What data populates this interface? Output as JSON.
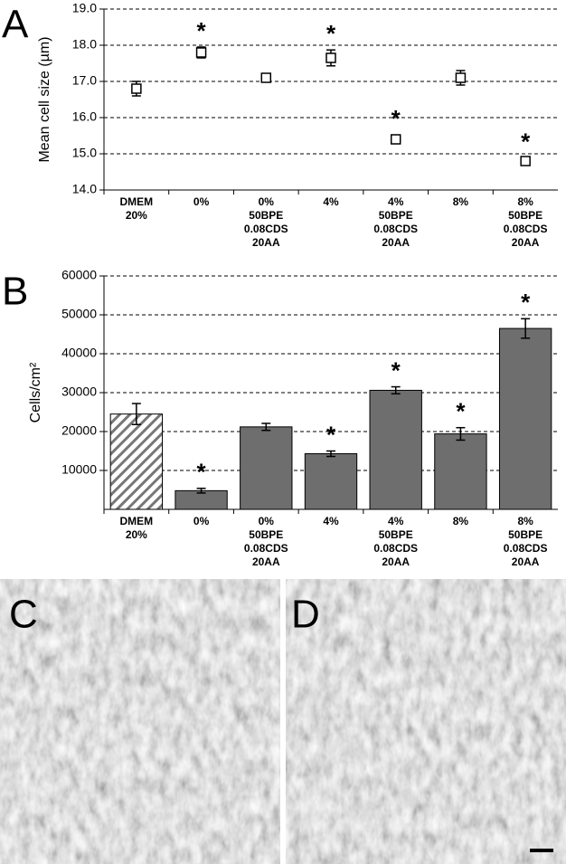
{
  "chart_data": [
    {
      "type": "point",
      "panel_label": "A",
      "ylabel": "Mean cell size (µm)",
      "categories": [
        "DMEM\n20%",
        "0%",
        "0%\n50BPE\n0.08CDS\n20AA",
        "4%",
        "4%\n50BPE\n0.08CDS\n20AA",
        "8%",
        "8%\n50BPE\n0.08CDS\n20AA"
      ],
      "values": [
        16.8,
        17.8,
        17.1,
        17.65,
        15.4,
        17.1,
        14.8
      ],
      "errors": [
        0.2,
        0.15,
        0.1,
        0.22,
        0.12,
        0.2,
        0.08
      ],
      "annotations": [
        {
          "index": 1,
          "text": "*"
        },
        {
          "index": 3,
          "text": "*"
        },
        {
          "index": 4,
          "text": "*"
        },
        {
          "index": 6,
          "text": "*"
        }
      ],
      "ylim": [
        14,
        19
      ],
      "yticks": [
        {
          "value": 14,
          "label": "14.0"
        },
        {
          "value": 15,
          "label": "15.0"
        },
        {
          "value": 16,
          "label": "16.0"
        },
        {
          "value": 17,
          "label": "17.0"
        },
        {
          "value": 18,
          "label": "18.0"
        },
        {
          "value": 19,
          "label": "19.0"
        }
      ],
      "grid": true,
      "color": "#ffffff"
    },
    {
      "type": "bar",
      "panel_label": "B",
      "ylabel": "Cells/cm²",
      "categories": [
        "DMEM\n20%",
        "0%",
        "0%\n50BPE\n0.08CDS\n20AA",
        "4%",
        "4%\n50BPE\n0.08CDS\n20AA",
        "8%",
        "8%\n50BPE\n0.08CDS\n20AA"
      ],
      "values": [
        24500,
        4800,
        21200,
        14300,
        30600,
        19400,
        46500
      ],
      "errors": [
        2700,
        600,
        900,
        700,
        900,
        1600,
        2500
      ],
      "hatched": [
        true,
        false,
        false,
        false,
        false,
        false,
        false
      ],
      "annotations": [
        {
          "index": 1,
          "text": "*"
        },
        {
          "index": 3,
          "text": "*"
        },
        {
          "index": 4,
          "text": "*"
        },
        {
          "index": 5,
          "text": "*"
        },
        {
          "index": 6,
          "text": "*"
        }
      ],
      "ylim": [
        0,
        60000
      ],
      "yticks": [
        10000,
        20000,
        30000,
        40000,
        50000,
        60000
      ],
      "grid": true,
      "color": "#6e6e6e"
    }
  ],
  "images": [
    {
      "label": "C"
    },
    {
      "label": "D"
    }
  ]
}
